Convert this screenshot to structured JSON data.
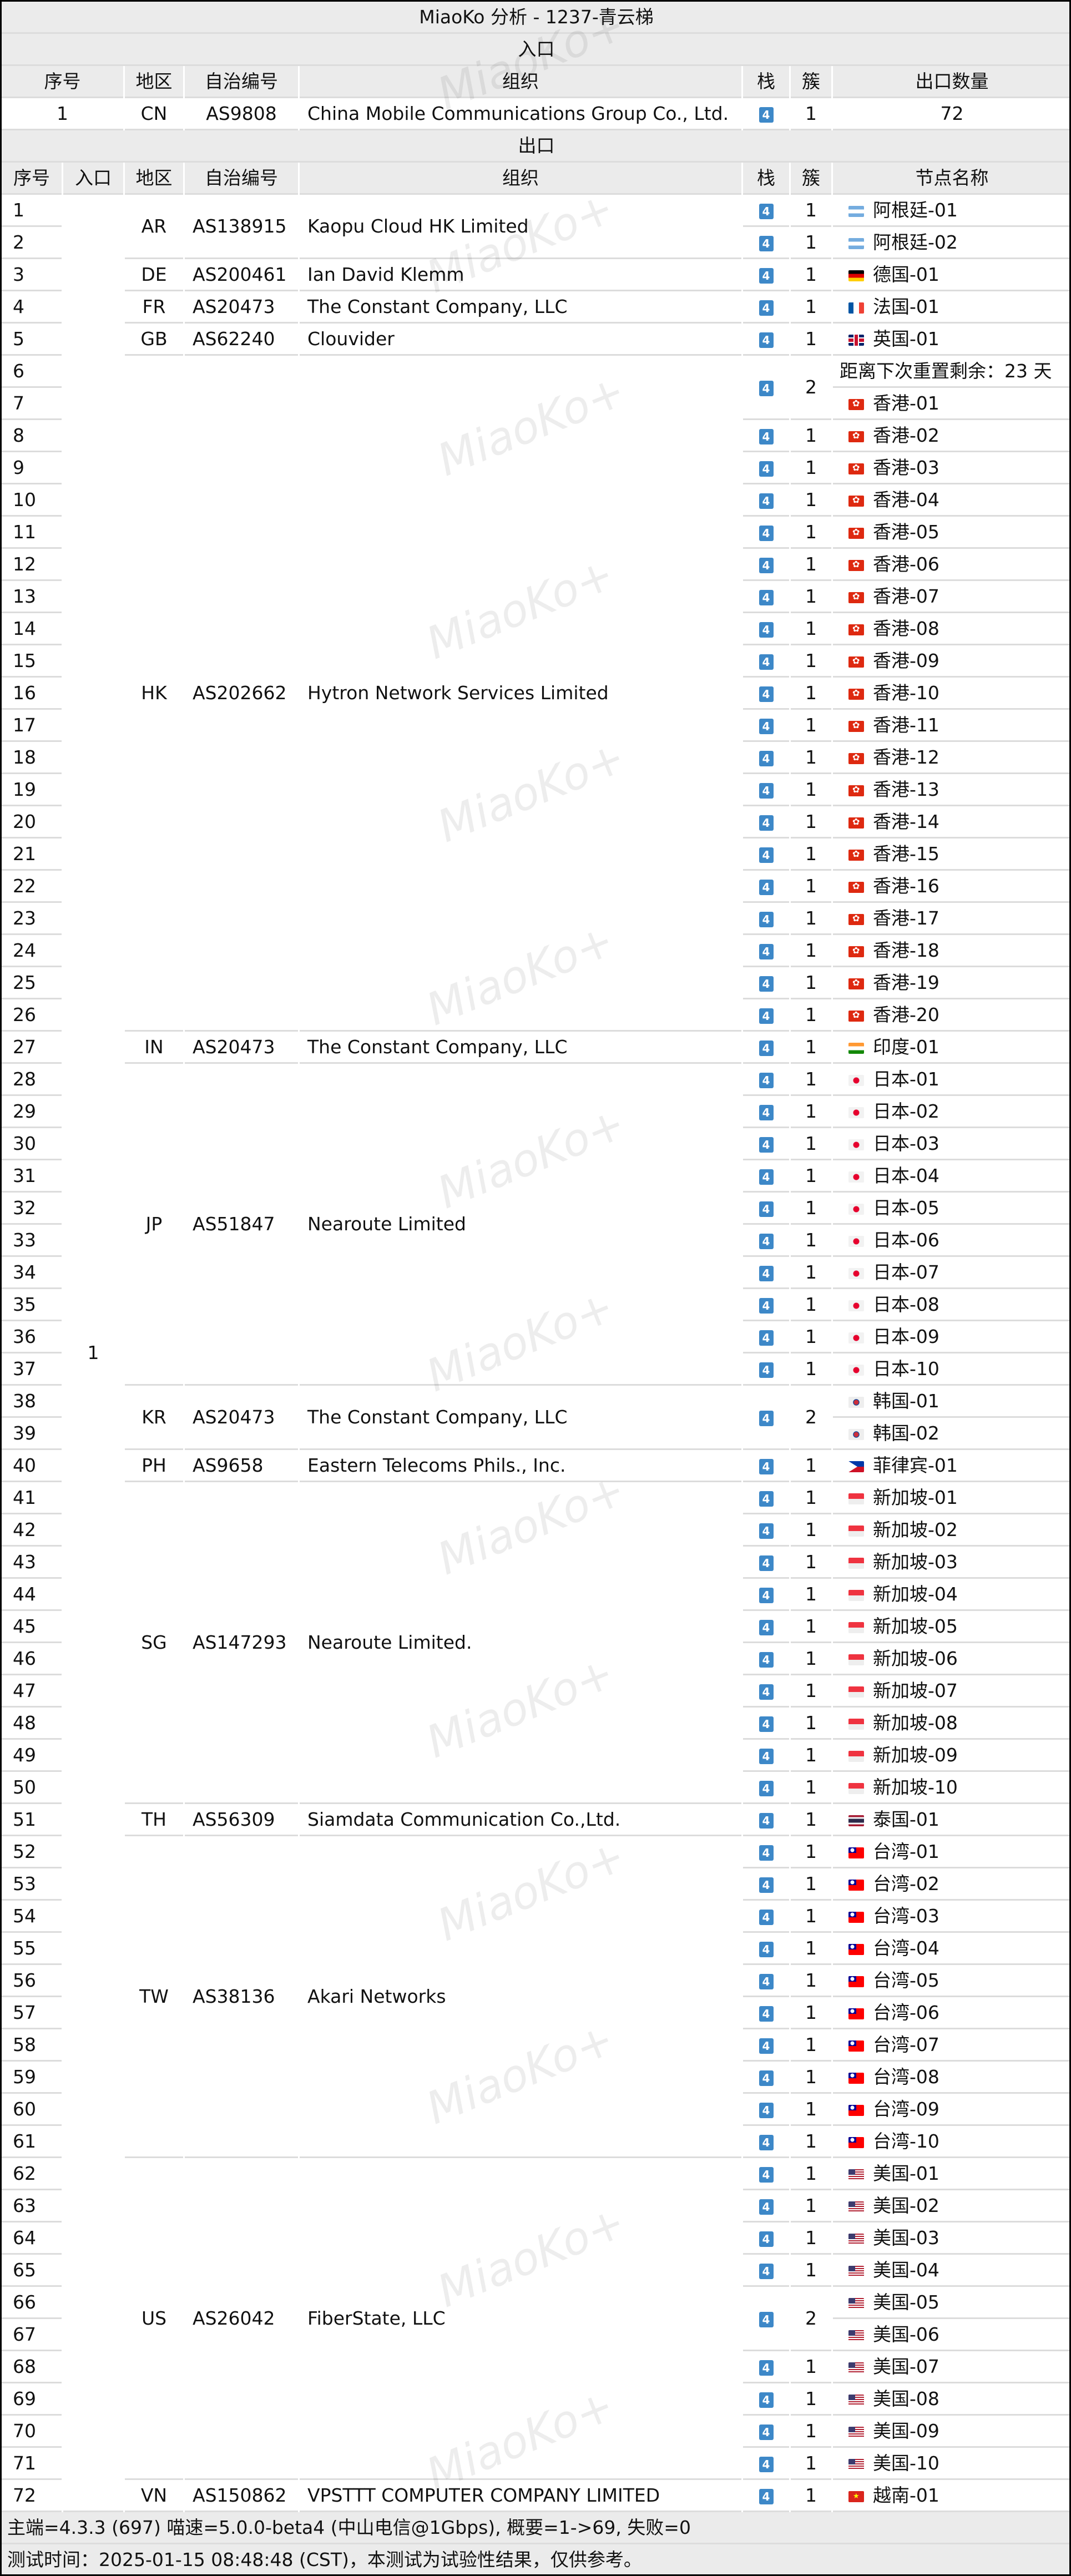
{
  "title": "MiaoKo 分析 - 1237-青云梯",
  "watermark": "MiaoKo+",
  "colors": {
    "header_bg": "#ebebeb",
    "ipv4_badge": "#3d88c8",
    "grid": "#dcdcdc"
  },
  "entry": {
    "section_label": "入口",
    "headers": {
      "seq": "序号",
      "region": "地区",
      "asn": "自治编号",
      "org": "组织",
      "stack": "栈",
      "cluster": "簇",
      "exit_count": "出口数量"
    },
    "row": {
      "seq": "1",
      "region": "CN",
      "asn": "AS9808",
      "org": "China Mobile Communications Group Co., Ltd.",
      "stack": "4",
      "cluster": "1",
      "exit_count": "72"
    }
  },
  "exit": {
    "section_label": "出口",
    "headers": {
      "seq": "序号",
      "entry": "入口",
      "region": "地区",
      "asn": "自治编号",
      "org": "组织",
      "stack": "栈",
      "cluster": "簇",
      "node": "节点名称"
    },
    "entry_value": "1",
    "groups": [
      {
        "region": "AR",
        "asn": "AS138915",
        "org": "Kaopu Cloud HK Limited",
        "flag": "ar",
        "clusters": [
          {
            "stack": "4",
            "cluster": "1",
            "nodes": [
              [
                "1",
                "阿根廷-01"
              ]
            ]
          },
          {
            "stack": "4",
            "cluster": "1",
            "nodes": [
              [
                "2",
                "阿根廷-02"
              ]
            ]
          }
        ]
      },
      {
        "region": "DE",
        "asn": "AS200461",
        "org": "Ian David Klemm",
        "flag": "de",
        "clusters": [
          {
            "stack": "4",
            "cluster": "1",
            "nodes": [
              [
                "3",
                "德国-01"
              ]
            ]
          }
        ]
      },
      {
        "region": "FR",
        "asn": "AS20473",
        "org": "The Constant Company, LLC",
        "flag": "fr",
        "clusters": [
          {
            "stack": "4",
            "cluster": "1",
            "nodes": [
              [
                "4",
                "法国-01"
              ]
            ]
          }
        ]
      },
      {
        "region": "GB",
        "asn": "AS62240",
        "org": "Clouvider",
        "flag": "gb",
        "clusters": [
          {
            "stack": "4",
            "cluster": "1",
            "nodes": [
              [
                "5",
                "英国-01"
              ]
            ]
          }
        ]
      },
      {
        "region": "HK",
        "asn": "AS202662",
        "org": "Hytron Network Services Limited",
        "flag": "hk",
        "clusters": [
          {
            "stack": "4",
            "cluster": "2",
            "nodes": [
              [
                "6",
                "距离下次重置剩余：23 天",
                ""
              ],
              [
                "7",
                "香港-01"
              ]
            ]
          },
          {
            "stack": "4",
            "cluster": "1",
            "nodes": [
              [
                "8",
                "香港-02"
              ]
            ]
          },
          {
            "stack": "4",
            "cluster": "1",
            "nodes": [
              [
                "9",
                "香港-03"
              ]
            ]
          },
          {
            "stack": "4",
            "cluster": "1",
            "nodes": [
              [
                "10",
                "香港-04"
              ]
            ]
          },
          {
            "stack": "4",
            "cluster": "1",
            "nodes": [
              [
                "11",
                "香港-05"
              ]
            ]
          },
          {
            "stack": "4",
            "cluster": "1",
            "nodes": [
              [
                "12",
                "香港-06"
              ]
            ]
          },
          {
            "stack": "4",
            "cluster": "1",
            "nodes": [
              [
                "13",
                "香港-07"
              ]
            ]
          },
          {
            "stack": "4",
            "cluster": "1",
            "nodes": [
              [
                "14",
                "香港-08"
              ]
            ]
          },
          {
            "stack": "4",
            "cluster": "1",
            "nodes": [
              [
                "15",
                "香港-09"
              ]
            ]
          },
          {
            "stack": "4",
            "cluster": "1",
            "nodes": [
              [
                "16",
                "香港-10"
              ]
            ]
          },
          {
            "stack": "4",
            "cluster": "1",
            "nodes": [
              [
                "17",
                "香港-11"
              ]
            ]
          },
          {
            "stack": "4",
            "cluster": "1",
            "nodes": [
              [
                "18",
                "香港-12"
              ]
            ]
          },
          {
            "stack": "4",
            "cluster": "1",
            "nodes": [
              [
                "19",
                "香港-13"
              ]
            ]
          },
          {
            "stack": "4",
            "cluster": "1",
            "nodes": [
              [
                "20",
                "香港-14"
              ]
            ]
          },
          {
            "stack": "4",
            "cluster": "1",
            "nodes": [
              [
                "21",
                "香港-15"
              ]
            ]
          },
          {
            "stack": "4",
            "cluster": "1",
            "nodes": [
              [
                "22",
                "香港-16"
              ]
            ]
          },
          {
            "stack": "4",
            "cluster": "1",
            "nodes": [
              [
                "23",
                "香港-17"
              ]
            ]
          },
          {
            "stack": "4",
            "cluster": "1",
            "nodes": [
              [
                "24",
                "香港-18"
              ]
            ]
          },
          {
            "stack": "4",
            "cluster": "1",
            "nodes": [
              [
                "25",
                "香港-19"
              ]
            ]
          },
          {
            "stack": "4",
            "cluster": "1",
            "nodes": [
              [
                "26",
                "香港-20"
              ]
            ]
          }
        ]
      },
      {
        "region": "IN",
        "asn": "AS20473",
        "org": "The Constant Company, LLC",
        "flag": "in",
        "clusters": [
          {
            "stack": "4",
            "cluster": "1",
            "nodes": [
              [
                "27",
                "印度-01"
              ]
            ]
          }
        ]
      },
      {
        "region": "JP",
        "asn": "AS51847",
        "org": "Nearoute Limited",
        "flag": "jp",
        "clusters": [
          {
            "stack": "4",
            "cluster": "1",
            "nodes": [
              [
                "28",
                "日本-01"
              ]
            ]
          },
          {
            "stack": "4",
            "cluster": "1",
            "nodes": [
              [
                "29",
                "日本-02"
              ]
            ]
          },
          {
            "stack": "4",
            "cluster": "1",
            "nodes": [
              [
                "30",
                "日本-03"
              ]
            ]
          },
          {
            "stack": "4",
            "cluster": "1",
            "nodes": [
              [
                "31",
                "日本-04"
              ]
            ]
          },
          {
            "stack": "4",
            "cluster": "1",
            "nodes": [
              [
                "32",
                "日本-05"
              ]
            ]
          },
          {
            "stack": "4",
            "cluster": "1",
            "nodes": [
              [
                "33",
                "日本-06"
              ]
            ]
          },
          {
            "stack": "4",
            "cluster": "1",
            "nodes": [
              [
                "34",
                "日本-07"
              ]
            ]
          },
          {
            "stack": "4",
            "cluster": "1",
            "nodes": [
              [
                "35",
                "日本-08"
              ]
            ]
          },
          {
            "stack": "4",
            "cluster": "1",
            "nodes": [
              [
                "36",
                "日本-09"
              ]
            ]
          },
          {
            "stack": "4",
            "cluster": "1",
            "nodes": [
              [
                "37",
                "日本-10"
              ]
            ]
          }
        ]
      },
      {
        "region": "KR",
        "asn": "AS20473",
        "org": "The Constant Company, LLC",
        "flag": "kr",
        "clusters": [
          {
            "stack": "4",
            "cluster": "2",
            "nodes": [
              [
                "38",
                "韩国-01"
              ],
              [
                "39",
                "韩国-02"
              ]
            ]
          }
        ]
      },
      {
        "region": "PH",
        "asn": "AS9658",
        "org": "Eastern Telecoms Phils., Inc.",
        "flag": "ph",
        "clusters": [
          {
            "stack": "4",
            "cluster": "1",
            "nodes": [
              [
                "40",
                "菲律宾-01"
              ]
            ]
          }
        ]
      },
      {
        "region": "SG",
        "asn": "AS147293",
        "org": "Nearoute Limited.",
        "flag": "sg",
        "clusters": [
          {
            "stack": "4",
            "cluster": "1",
            "nodes": [
              [
                "41",
                "新加坡-01"
              ]
            ]
          },
          {
            "stack": "4",
            "cluster": "1",
            "nodes": [
              [
                "42",
                "新加坡-02"
              ]
            ]
          },
          {
            "stack": "4",
            "cluster": "1",
            "nodes": [
              [
                "43",
                "新加坡-03"
              ]
            ]
          },
          {
            "stack": "4",
            "cluster": "1",
            "nodes": [
              [
                "44",
                "新加坡-04"
              ]
            ]
          },
          {
            "stack": "4",
            "cluster": "1",
            "nodes": [
              [
                "45",
                "新加坡-05"
              ]
            ]
          },
          {
            "stack": "4",
            "cluster": "1",
            "nodes": [
              [
                "46",
                "新加坡-06"
              ]
            ]
          },
          {
            "stack": "4",
            "cluster": "1",
            "nodes": [
              [
                "47",
                "新加坡-07"
              ]
            ]
          },
          {
            "stack": "4",
            "cluster": "1",
            "nodes": [
              [
                "48",
                "新加坡-08"
              ]
            ]
          },
          {
            "stack": "4",
            "cluster": "1",
            "nodes": [
              [
                "49",
                "新加坡-09"
              ]
            ]
          },
          {
            "stack": "4",
            "cluster": "1",
            "nodes": [
              [
                "50",
                "新加坡-10"
              ]
            ]
          }
        ]
      },
      {
        "region": "TH",
        "asn": "AS56309",
        "org": "Siamdata Communication Co.,Ltd.",
        "flag": "th",
        "clusters": [
          {
            "stack": "4",
            "cluster": "1",
            "nodes": [
              [
                "51",
                "泰国-01"
              ]
            ]
          }
        ]
      },
      {
        "region": "TW",
        "asn": "AS38136",
        "org": "Akari Networks",
        "flag": "tw",
        "clusters": [
          {
            "stack": "4",
            "cluster": "1",
            "nodes": [
              [
                "52",
                "台湾-01"
              ]
            ]
          },
          {
            "stack": "4",
            "cluster": "1",
            "nodes": [
              [
                "53",
                "台湾-02"
              ]
            ]
          },
          {
            "stack": "4",
            "cluster": "1",
            "nodes": [
              [
                "54",
                "台湾-03"
              ]
            ]
          },
          {
            "stack": "4",
            "cluster": "1",
            "nodes": [
              [
                "55",
                "台湾-04"
              ]
            ]
          },
          {
            "stack": "4",
            "cluster": "1",
            "nodes": [
              [
                "56",
                "台湾-05"
              ]
            ]
          },
          {
            "stack": "4",
            "cluster": "1",
            "nodes": [
              [
                "57",
                "台湾-06"
              ]
            ]
          },
          {
            "stack": "4",
            "cluster": "1",
            "nodes": [
              [
                "58",
                "台湾-07"
              ]
            ]
          },
          {
            "stack": "4",
            "cluster": "1",
            "nodes": [
              [
                "59",
                "台湾-08"
              ]
            ]
          },
          {
            "stack": "4",
            "cluster": "1",
            "nodes": [
              [
                "60",
                "台湾-09"
              ]
            ]
          },
          {
            "stack": "4",
            "cluster": "1",
            "nodes": [
              [
                "61",
                "台湾-10"
              ]
            ]
          }
        ]
      },
      {
        "region": "US",
        "asn": "AS26042",
        "org": "FiberState, LLC",
        "flag": "us",
        "clusters": [
          {
            "stack": "4",
            "cluster": "1",
            "nodes": [
              [
                "62",
                "美国-01"
              ]
            ]
          },
          {
            "stack": "4",
            "cluster": "1",
            "nodes": [
              [
                "63",
                "美国-02"
              ]
            ]
          },
          {
            "stack": "4",
            "cluster": "1",
            "nodes": [
              [
                "64",
                "美国-03"
              ]
            ]
          },
          {
            "stack": "4",
            "cluster": "1",
            "nodes": [
              [
                "65",
                "美国-04"
              ]
            ]
          },
          {
            "stack": "4",
            "cluster": "2",
            "nodes": [
              [
                "66",
                "美国-05"
              ],
              [
                "67",
                "美国-06"
              ]
            ]
          },
          {
            "stack": "4",
            "cluster": "1",
            "nodes": [
              [
                "68",
                "美国-07"
              ]
            ]
          },
          {
            "stack": "4",
            "cluster": "1",
            "nodes": [
              [
                "69",
                "美国-08"
              ]
            ]
          },
          {
            "stack": "4",
            "cluster": "1",
            "nodes": [
              [
                "70",
                "美国-09"
              ]
            ]
          },
          {
            "stack": "4",
            "cluster": "1",
            "nodes": [
              [
                "71",
                "美国-10"
              ]
            ]
          }
        ]
      },
      {
        "region": "VN",
        "asn": "AS150862",
        "org": "VPSTTT COMPUTER COMPANY LIMITED",
        "flag": "vn",
        "clusters": [
          {
            "stack": "4",
            "cluster": "1",
            "nodes": [
              [
                "72",
                "越南-01"
              ]
            ]
          }
        ]
      }
    ]
  },
  "footer": {
    "line1": "主端=4.3.3 (697) 喵速=5.0.0-beta4 (中山电信@1Gbps), 概要=1->69, 失败=0",
    "line2": "测试时间：2025-01-15 08:48:48 (CST)，本测试为试验性结果，仅供参考。"
  }
}
